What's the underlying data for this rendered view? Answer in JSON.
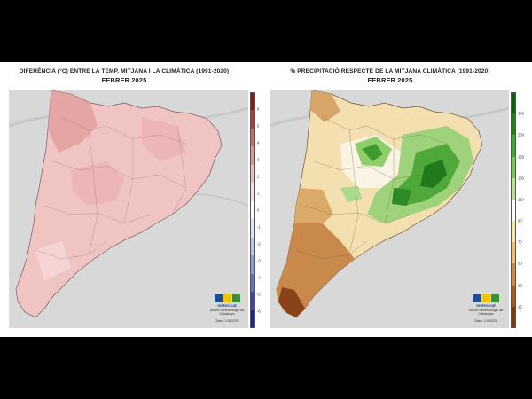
{
  "left_map": {
    "title": "DIFERÈNCIA (°C) ENTRE LA TEMP. MITJANA I LA CLIMÀTICA (1991-2020)",
    "subtitle": "FEBRER 2025",
    "legend_ticks": [
      "6",
      "5",
      "4",
      "3",
      "2",
      "1",
      "0",
      "-1",
      "-2",
      "-3",
      "-4",
      "-5",
      "-6"
    ],
    "legend_colors": [
      "#8b1a1a",
      "#b03a3a",
      "#c96a6a",
      "#dd9898",
      "#eebcbc",
      "#f7dede",
      "#ffffff",
      "#dfe4f4",
      "#b9c2e8",
      "#8f9ad6",
      "#6670c0",
      "#3e45a8",
      "#1f2390"
    ],
    "fill_color": "#f2c6c6",
    "logo": {
      "brand": "meteo.cat",
      "service": "Servei Meteorològic de Catalunya",
      "date": "Data: 1/3/2025"
    }
  },
  "right_map": {
    "title": "% PRECIPITACIÓ RESPECTE DE LA MITJANA CLIMÀTICA (1991-2020)",
    "subtitle": "FEBRER 2025",
    "legend_ticks": [
      "300",
      "200",
      "150",
      "130",
      "110",
      "90",
      "70",
      "50",
      "30",
      "15"
    ],
    "legend_colors": [
      "#0b5e12",
      "#257d1f",
      "#45a336",
      "#7cc45b",
      "#b6e09b",
      "#ffffff",
      "#f6e4b2",
      "#e8c07a",
      "#cf8a45",
      "#a65a22",
      "#7a3a13"
    ],
    "logo": {
      "brand": "meteo.cat",
      "service": "Servei Meteorològic de Catalunya",
      "date": "Data: 1/3/2025"
    }
  }
}
